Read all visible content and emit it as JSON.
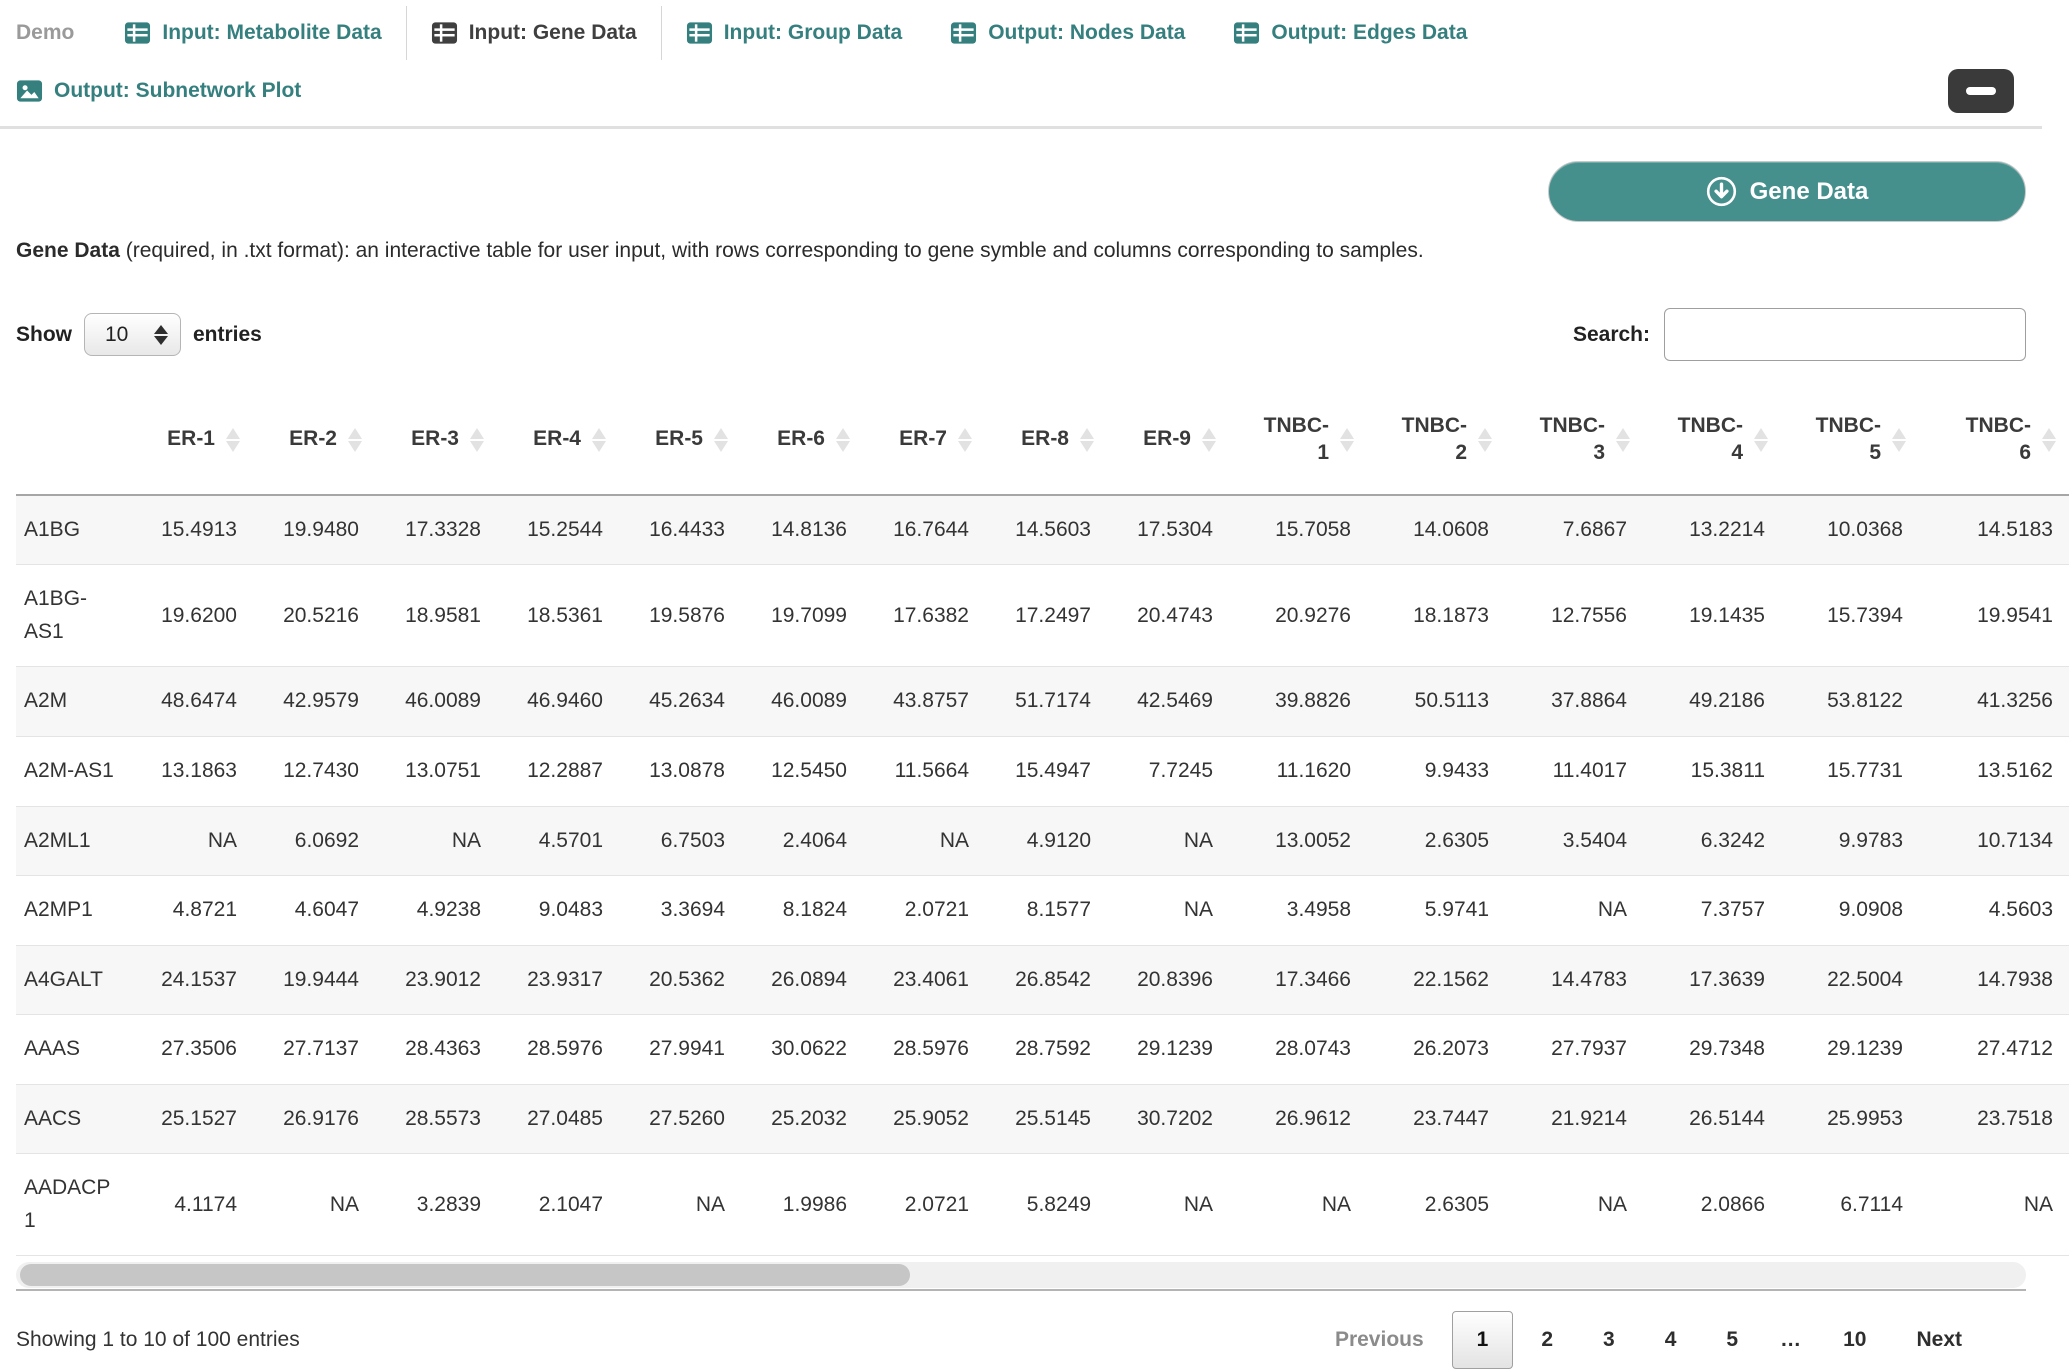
{
  "tabs": {
    "brand": "Demo",
    "items": [
      {
        "label": "Input: Metabolite Data",
        "icon": "table-icon",
        "active": false
      },
      {
        "label": "Input: Gene Data",
        "icon": "table-icon",
        "active": true
      },
      {
        "label": "Input: Group Data",
        "icon": "table-icon",
        "active": false
      },
      {
        "label": "Output: Nodes Data",
        "icon": "table-icon",
        "active": false
      },
      {
        "label": "Output: Edges Data",
        "icon": "table-icon",
        "active": false
      },
      {
        "label": "Output: Subnetwork Plot",
        "icon": "image-icon",
        "active": false
      }
    ]
  },
  "panel": {
    "download_button_label": "Gene Data",
    "description_bold": "Gene Data",
    "description_rest": " (required, in .txt format): an interactive table for user input, with rows corresponding to gene symble and columns corresponding to samples."
  },
  "table_controls": {
    "show_label": "Show",
    "entries_label": "entries",
    "page_length": "10",
    "search_label": "Search:",
    "search_value": ""
  },
  "table": {
    "columns": [
      "",
      "ER-1",
      "ER-2",
      "ER-3",
      "ER-4",
      "ER-5",
      "ER-6",
      "ER-7",
      "ER-8",
      "ER-9",
      "TNBC-1",
      "TNBC-2",
      "TNBC-3",
      "TNBC-4",
      "TNBC-5",
      "TNBC-6"
    ],
    "rows": [
      {
        "gene": "A1BG",
        "values": [
          "15.4913",
          "19.9480",
          "17.3328",
          "15.2544",
          "16.4433",
          "14.8136",
          "16.7644",
          "14.5603",
          "17.5304",
          "15.7058",
          "14.0608",
          "7.6867",
          "13.2214",
          "10.0368",
          "14.5183"
        ]
      },
      {
        "gene": "A1BG-AS1",
        "values": [
          "19.6200",
          "20.5216",
          "18.9581",
          "18.5361",
          "19.5876",
          "19.7099",
          "17.6382",
          "17.2497",
          "20.4743",
          "20.9276",
          "18.1873",
          "12.7556",
          "19.1435",
          "15.7394",
          "19.9541"
        ]
      },
      {
        "gene": "A2M",
        "values": [
          "48.6474",
          "42.9579",
          "46.0089",
          "46.9460",
          "45.2634",
          "46.0089",
          "43.8757",
          "51.7174",
          "42.5469",
          "39.8826",
          "50.5113",
          "37.8864",
          "49.2186",
          "53.8122",
          "41.3256"
        ]
      },
      {
        "gene": "A2M-AS1",
        "values": [
          "13.1863",
          "12.7430",
          "13.0751",
          "12.2887",
          "13.0878",
          "12.5450",
          "11.5664",
          "15.4947",
          "7.7245",
          "11.1620",
          "9.9433",
          "11.4017",
          "15.3811",
          "15.7731",
          "13.5162"
        ]
      },
      {
        "gene": "A2ML1",
        "values": [
          "NA",
          "6.0692",
          "NA",
          "4.5701",
          "6.7503",
          "2.4064",
          "NA",
          "4.9120",
          "NA",
          "13.0052",
          "2.6305",
          "3.5404",
          "6.3242",
          "9.9783",
          "10.7134"
        ]
      },
      {
        "gene": "A2MP1",
        "values": [
          "4.8721",
          "4.6047",
          "4.9238",
          "9.0483",
          "3.3694",
          "8.1824",
          "2.0721",
          "8.1577",
          "NA",
          "3.4958",
          "5.9741",
          "NA",
          "7.3757",
          "9.0908",
          "4.5603"
        ]
      },
      {
        "gene": "A4GALT",
        "values": [
          "24.1537",
          "19.9444",
          "23.9012",
          "23.9317",
          "20.5362",
          "26.0894",
          "23.4061",
          "26.8542",
          "20.8396",
          "17.3466",
          "22.1562",
          "14.4783",
          "17.3639",
          "22.5004",
          "14.7938"
        ]
      },
      {
        "gene": "AAAS",
        "values": [
          "27.3506",
          "27.7137",
          "28.4363",
          "28.5976",
          "27.9941",
          "30.0622",
          "28.5976",
          "28.7592",
          "29.1239",
          "28.0743",
          "26.2073",
          "27.7937",
          "29.7348",
          "29.1239",
          "27.4712"
        ]
      },
      {
        "gene": "AACS",
        "values": [
          "25.1527",
          "26.9176",
          "28.5573",
          "27.0485",
          "27.5260",
          "25.2032",
          "25.9052",
          "25.5145",
          "30.7202",
          "26.9612",
          "23.7447",
          "21.9214",
          "26.5144",
          "25.9953",
          "23.7518"
        ]
      },
      {
        "gene": "AADACP1",
        "values": [
          "4.1174",
          "NA",
          "3.2839",
          "2.1047",
          "NA",
          "1.9986",
          "2.0721",
          "5.8249",
          "NA",
          "NA",
          "2.6305",
          "NA",
          "2.0866",
          "6.7114",
          "NA"
        ]
      }
    ]
  },
  "footer": {
    "info": "Showing 1 to 10 of 100 entries",
    "pagination": [
      {
        "label": "Previous",
        "state": "disabled"
      },
      {
        "label": "1",
        "state": "current"
      },
      {
        "label": "2",
        "state": "normal"
      },
      {
        "label": "3",
        "state": "normal"
      },
      {
        "label": "4",
        "state": "normal"
      },
      {
        "label": "5",
        "state": "normal"
      },
      {
        "label": "…",
        "state": "ellipsis"
      },
      {
        "label": "10",
        "state": "normal"
      },
      {
        "label": "Next",
        "state": "normal"
      }
    ]
  },
  "colors": {
    "teal_link": "#35807f",
    "teal_button": "#45908d",
    "active_tab": "#3f3f3f",
    "brand_gray": "#9a9a9a",
    "text_dark": "#333333",
    "header_border": "#a6a6a6",
    "row_border": "#e4e4e4",
    "row_stripe": "#f7f7f7",
    "sort_icon": "#e2e2e2",
    "scroll_thumb": "#c6c6c6",
    "scroll_track": "#f0f0f0",
    "minimize_bg": "#3a3a3a",
    "pagination_disabled": "#8b8b8b"
  }
}
